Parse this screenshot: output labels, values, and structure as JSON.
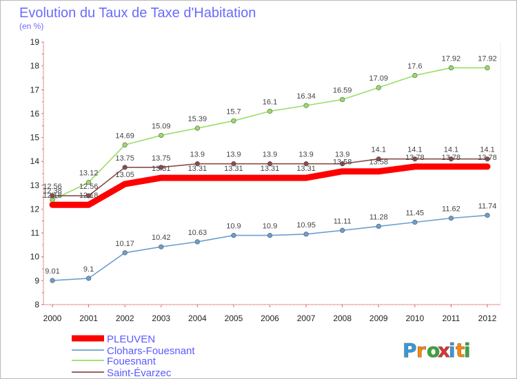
{
  "chart_data": {
    "type": "line",
    "title": "Evolution du Taux de Taxe d'Habitation",
    "subtitle": "(en %)",
    "xlabel": "",
    "ylabel": "",
    "ylim": [
      8,
      19
    ],
    "yticks": [
      8,
      9,
      10,
      11,
      12,
      13,
      14,
      15,
      16,
      17,
      18,
      19
    ],
    "categories": [
      2000,
      2001,
      2002,
      2003,
      2004,
      2005,
      2006,
      2007,
      2008,
      2009,
      2010,
      2011,
      2012
    ],
    "legend_position": "bottom-left",
    "series": [
      {
        "name": "PLEUVEN",
        "color": "#ff0000",
        "marker": false,
        "values": [
          12.18,
          12.18,
          13.05,
          13.31,
          13.31,
          13.31,
          13.31,
          13.31,
          13.58,
          13.58,
          13.78,
          13.78,
          13.78
        ]
      },
      {
        "name": "Clohars-Fouesnant",
        "color": "#6a9fd1",
        "marker": true,
        "values": [
          9.01,
          9.1,
          10.17,
          10.42,
          10.63,
          10.9,
          10.9,
          10.95,
          11.11,
          11.28,
          11.45,
          11.62,
          11.74
        ]
      },
      {
        "name": "Fouesnant",
        "color": "#99dd66",
        "marker": true,
        "values": [
          12.38,
          13.12,
          14.69,
          15.09,
          15.39,
          15.7,
          16.1,
          16.34,
          16.59,
          17.09,
          17.6,
          17.92,
          17.92
        ]
      },
      {
        "name": "Saint-Évarzec",
        "color": "#8b4a4a",
        "marker": true,
        "values": [
          12.56,
          12.56,
          13.75,
          13.75,
          13.9,
          13.9,
          13.9,
          13.9,
          13.9,
          14.1,
          14.1,
          14.1,
          14.1
        ]
      }
    ]
  },
  "logo": {
    "text": "Proxiti",
    "letters": [
      "P",
      "r",
      "o",
      "x",
      "i",
      "t",
      "i"
    ],
    "colors": [
      "#3399dd",
      "#ff8800",
      "#33aa33",
      "#dd3333",
      "#3399dd",
      "#ff8800",
      "#33aa33"
    ]
  }
}
